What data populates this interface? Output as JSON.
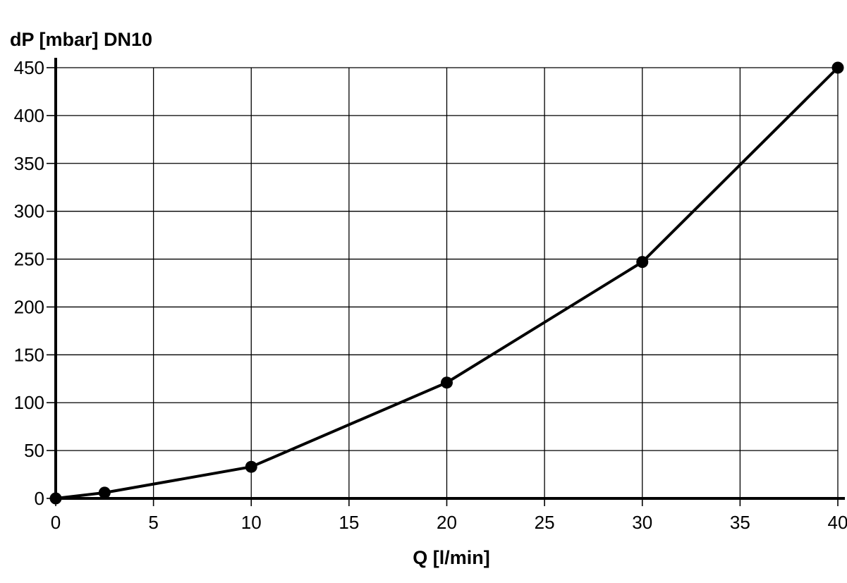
{
  "chart_data": {
    "type": "line",
    "title": "",
    "ylabel": "dP [mbar] DN10",
    "xlabel": "Q [l/min]",
    "xlim": [
      0,
      40
    ],
    "ylim": [
      0,
      450
    ],
    "xticks": [
      0,
      5,
      10,
      15,
      20,
      25,
      30,
      35,
      40
    ],
    "yticks": [
      0,
      50,
      100,
      150,
      200,
      250,
      300,
      350,
      400,
      450
    ],
    "grid": true,
    "legend": "none",
    "series": [
      {
        "x": [
          0,
          2.5,
          10,
          20,
          30,
          40
        ],
        "y": [
          0,
          6,
          33,
          121,
          247,
          450
        ],
        "color": "#000000",
        "marker": "circle"
      }
    ]
  }
}
